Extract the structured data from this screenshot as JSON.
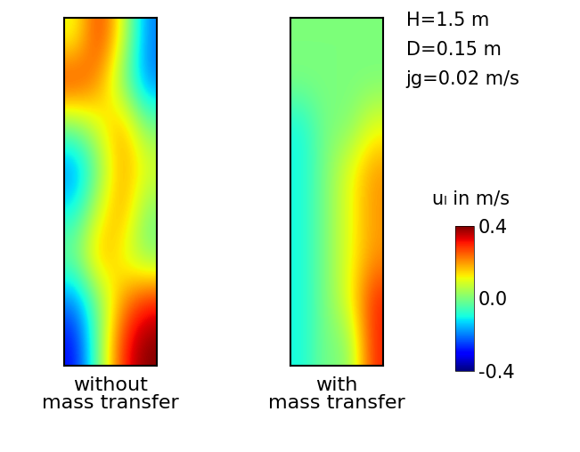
{
  "chart_data": [
    {
      "type": "heatmap",
      "xlabel": "without mass transfer",
      "tick_labels": false,
      "cells": [
        [
          0.1,
          0.3,
          0.1,
          -0.2
        ],
        [
          0.3,
          0.2,
          0.0,
          -0.2
        ],
        [
          0.0,
          0.1,
          0.2,
          0.0
        ],
        [
          -0.2,
          0.0,
          0.2,
          0.1
        ],
        [
          -0.1,
          0.1,
          0.2,
          0.0
        ],
        [
          0.0,
          0.2,
          0.1,
          0.0
        ],
        [
          -0.2,
          0.0,
          0.2,
          0.3
        ],
        [
          -0.3,
          0.0,
          0.3,
          0.4
        ]
      ]
    },
    {
      "type": "heatmap",
      "xlabel": "with mass transfer",
      "tick_labels": false,
      "cells": [
        [
          0.0,
          0.0,
          0.0,
          0.0
        ],
        [
          0.0,
          0.0,
          0.0,
          0.0
        ],
        [
          -0.1,
          0.0,
          0.0,
          0.1
        ],
        [
          -0.1,
          0.0,
          0.1,
          0.2
        ],
        [
          -0.1,
          0.0,
          0.1,
          0.2
        ],
        [
          -0.1,
          0.0,
          0.1,
          0.2
        ],
        [
          -0.1,
          0.0,
          0.1,
          0.3
        ],
        [
          -0.1,
          0.0,
          0.0,
          0.3
        ]
      ]
    }
  ],
  "colorbar": {
    "label": "uₗ in m/s",
    "range": [
      -0.4,
      0.4
    ],
    "ticks": [
      -0.4,
      0.0,
      0.4
    ]
  },
  "annotations": [
    "H=1.5 m",
    "D=0.15 m",
    "jg=0.02 m/s"
  ]
}
